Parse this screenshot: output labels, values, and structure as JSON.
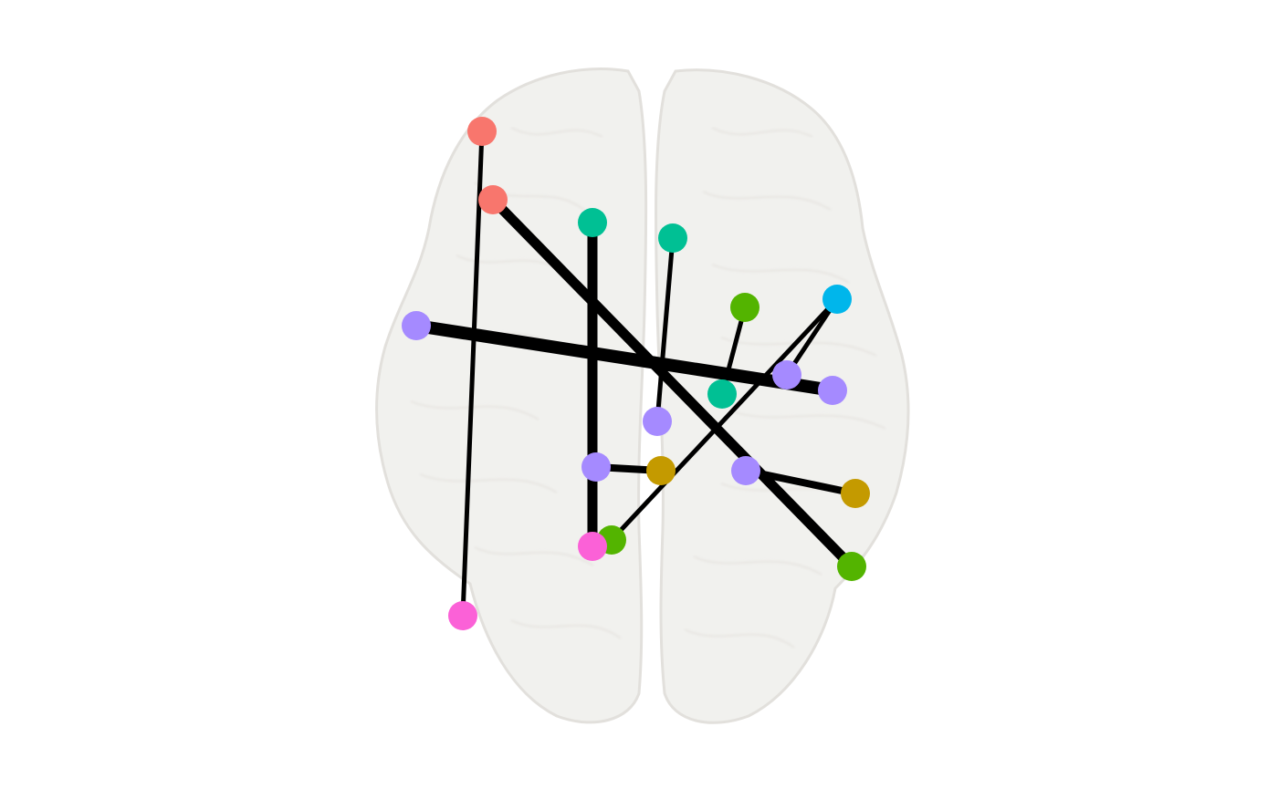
{
  "brain": {
    "view": "axial top view",
    "fill_color": "#efeeeb",
    "shade_color": "#e2e0dc",
    "opacity": 0.85
  },
  "colors": {
    "edge": "#000000",
    "red": "#f8766d",
    "teal": "#00c094",
    "green": "#53b400",
    "blue": "#00b6eb",
    "purple": "#a58aff",
    "gold": "#c49a00",
    "pink": "#fb61d7"
  },
  "nodes": [
    {
      "id": "n1",
      "color": "red"
    },
    {
      "id": "n2",
      "color": "red"
    },
    {
      "id": "n3",
      "color": "teal"
    },
    {
      "id": "n4",
      "color": "teal"
    },
    {
      "id": "n5",
      "color": "teal"
    },
    {
      "id": "n6",
      "color": "green"
    },
    {
      "id": "n7",
      "color": "green"
    },
    {
      "id": "n8",
      "color": "green"
    },
    {
      "id": "n9",
      "color": "blue"
    },
    {
      "id": "n10",
      "color": "purple"
    },
    {
      "id": "n11",
      "color": "purple"
    },
    {
      "id": "n12",
      "color": "purple"
    },
    {
      "id": "n13",
      "color": "purple"
    },
    {
      "id": "n14",
      "color": "purple"
    },
    {
      "id": "n15",
      "color": "purple"
    },
    {
      "id": "n16",
      "color": "gold"
    },
    {
      "id": "n17",
      "color": "gold"
    },
    {
      "id": "n18",
      "color": "pink"
    },
    {
      "id": "n19",
      "color": "pink"
    }
  ],
  "edges": [
    {
      "from": "n1",
      "to": "n19",
      "weight": 1
    },
    {
      "from": "n2",
      "to": "n8",
      "weight": 3
    },
    {
      "from": "n3",
      "to": "n18",
      "weight": 3
    },
    {
      "from": "n4",
      "to": "n13",
      "weight": 1
    },
    {
      "from": "n10",
      "to": "n12",
      "weight": 4
    },
    {
      "from": "n6",
      "to": "n5",
      "weight": 1
    },
    {
      "from": "n9",
      "to": "n7",
      "weight": 1
    },
    {
      "from": "n9",
      "to": "n11",
      "weight": 1
    },
    {
      "from": "n14",
      "to": "n16",
      "weight": 2
    },
    {
      "from": "n15",
      "to": "n17",
      "weight": 2
    }
  ]
}
